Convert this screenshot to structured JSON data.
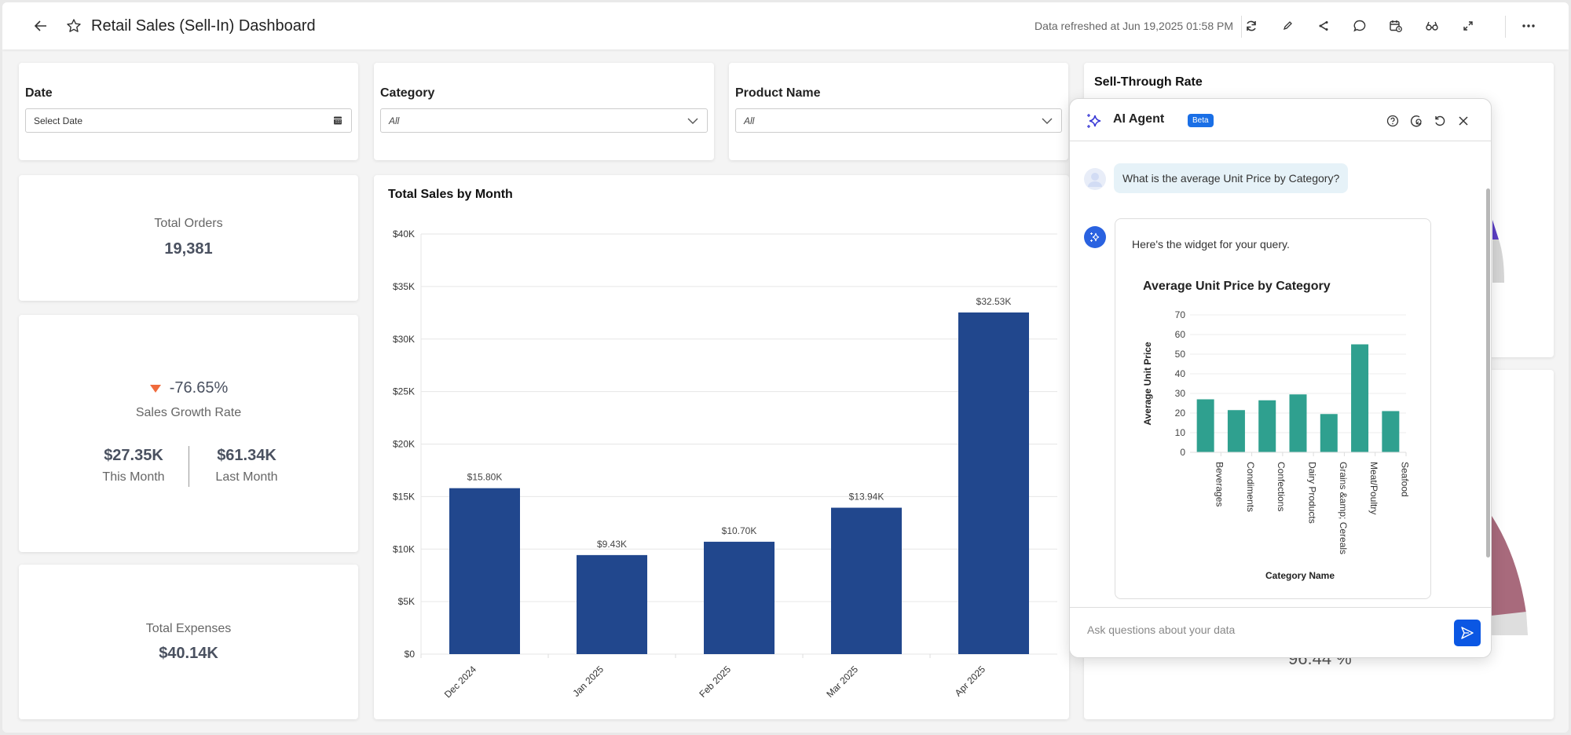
{
  "header": {
    "title": "Retail Sales (Sell-In) Dashboard",
    "refresh_text": "Data refreshed at Jun 19,2025 01:58 PM",
    "icons": [
      "back-arrow-icon",
      "star-icon",
      "refresh-icon",
      "edit-icon",
      "share-icon",
      "comment-icon",
      "schedule-icon",
      "view-icon",
      "expand-icon",
      "more-icon"
    ]
  },
  "filters": {
    "date": {
      "label": "Date",
      "placeholder": "Select Date"
    },
    "category": {
      "label": "Category",
      "value": "All"
    },
    "product": {
      "label": "Product Name",
      "value": "All"
    }
  },
  "kpis": {
    "total_orders": {
      "label": "Total Orders",
      "value": "19,381"
    },
    "sales_growth": {
      "value": "-76.65%",
      "label": "Sales Growth Rate",
      "this_month_value": "$27.35K",
      "this_month_label": "This Month",
      "last_month_value": "$61.34K",
      "last_month_label": "Last Month",
      "down_color": "#f06a3c"
    },
    "total_expenses": {
      "label": "Total Expenses",
      "value": "$40.14K"
    }
  },
  "sell_through": {
    "title": "Sell-Through Rate",
    "partial_value": "96.44 %"
  },
  "ai_agent": {
    "title": "AI Agent",
    "badge": "Beta",
    "user_message": "What is the average Unit Price by Category?",
    "bot_message": "Here's the widget for your query.",
    "input_placeholder": "Ask questions about your data"
  },
  "chart_data": [
    {
      "type": "bar",
      "title": "Total Sales by Month",
      "categories": [
        "Dec 2024",
        "Jan 2025",
        "Feb 2025",
        "Mar 2025",
        "Apr 2025"
      ],
      "values": [
        15800,
        9430,
        10700,
        13940,
        32530
      ],
      "data_labels": [
        "$15.80K",
        "$9.43K",
        "$10.70K",
        "$13.94K",
        "$32.53K"
      ],
      "yticks": [
        "$0",
        "$5K",
        "$10K",
        "$15K",
        "$20K",
        "$25K",
        "$30K",
        "$35K",
        "$40K"
      ],
      "ylim": [
        0,
        40000
      ],
      "xlabel": "",
      "ylabel": "",
      "color": "#21478d",
      "grid": true
    },
    {
      "type": "bar",
      "title": "Average Unit Price by Category",
      "categories": [
        "Beverages",
        "Condiments",
        "Confections",
        "Dairy Products",
        "Grains &amp; Cereals",
        "Meat/Poultry",
        "Seafood"
      ],
      "values": [
        27,
        21.5,
        26.5,
        29.5,
        19.5,
        55,
        21
      ],
      "yticks": [
        "0",
        "10",
        "20",
        "30",
        "40",
        "50",
        "60",
        "70"
      ],
      "ylim": [
        0,
        70
      ],
      "xlabel": "Category Name",
      "ylabel": "Average Unit Price",
      "color": "#2fa08f",
      "grid": true
    }
  ]
}
